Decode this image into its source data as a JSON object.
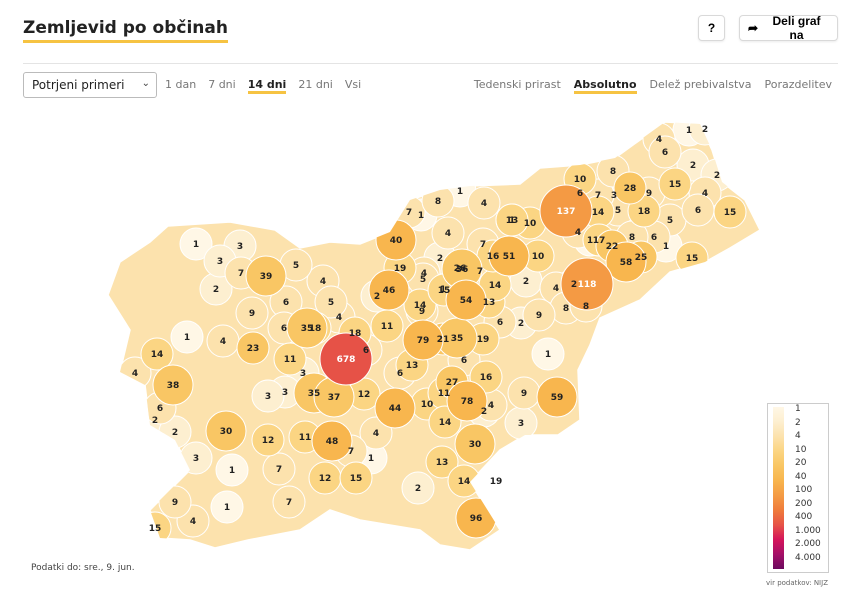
{
  "header": {
    "title": "Zemljevid po občinah",
    "help_label": "?",
    "share_label": "Deli graf na"
  },
  "filters": {
    "select_value": "Potrjeni primeri",
    "periods": [
      "1 dan",
      "7 dni",
      "14 dni",
      "21 dni",
      "Vsi"
    ],
    "active_period": "14 dni",
    "modes": [
      "Tedenski prirast",
      "Absolutno",
      "Delež prebivalstva",
      "Porazdelitev"
    ],
    "active_mode": "Absolutno"
  },
  "colors": {
    "accent": "#f6c342"
  },
  "map_data": {
    "municipality_values": [
      1,
      2,
      4,
      6,
      2,
      2,
      1,
      4,
      8,
      10,
      8,
      6,
      7,
      3,
      28,
      9,
      15,
      4,
      6,
      15,
      1,
      10,
      137,
      14,
      5,
      18,
      5,
      7,
      1,
      4,
      7,
      13,
      4,
      1,
      17,
      8,
      6,
      1,
      40,
      1,
      3,
      22,
      58,
      25,
      15,
      3,
      7,
      5,
      19,
      4,
      2,
      36,
      16,
      51,
      10,
      26,
      7,
      4,
      39,
      5,
      1,
      2,
      46,
      2,
      14,
      2,
      4,
      2,
      118,
      6,
      5,
      14,
      15,
      54,
      13,
      8,
      8,
      9,
      9,
      4,
      18,
      9,
      6,
      2,
      11,
      6,
      35,
      18,
      35,
      79,
      21,
      19,
      14,
      1,
      4,
      23,
      678,
      6,
      11,
      13,
      6,
      3,
      1,
      6,
      38,
      16,
      4,
      3,
      35,
      37,
      12,
      44,
      27,
      9,
      59,
      78,
      3,
      10,
      11,
      4,
      2,
      6,
      2,
      14,
      3,
      2,
      4,
      12,
      11,
      30,
      30,
      48,
      3,
      7,
      1,
      1,
      12,
      7,
      13,
      14,
      2,
      19,
      7,
      15,
      9,
      1,
      4,
      15,
      96,
      19,
      15
    ],
    "scale": [
      {
        "label": "1",
        "color": "#fff7e6"
      },
      {
        "label": "2",
        "color": "#fdefd0"
      },
      {
        "label": "4",
        "color": "#fce2ad"
      },
      {
        "label": "10",
        "color": "#fbd583"
      },
      {
        "label": "20",
        "color": "#f9c664"
      },
      {
        "label": "40",
        "color": "#f8b64e"
      },
      {
        "label": "100",
        "color": "#f49a44"
      },
      {
        "label": "200",
        "color": "#ef7a3b"
      },
      {
        "label": "400",
        "color": "#e65247"
      },
      {
        "label": "1.000",
        "color": "#d4145a"
      },
      {
        "label": "2.000",
        "color": "#a40f68"
      },
      {
        "label": "4.000",
        "color": "#6b0a5e"
      }
    ]
  },
  "footer": {
    "data_date": "Podatki do: sre., 9. jun.",
    "source": "vir podatkov: NIJZ"
  }
}
